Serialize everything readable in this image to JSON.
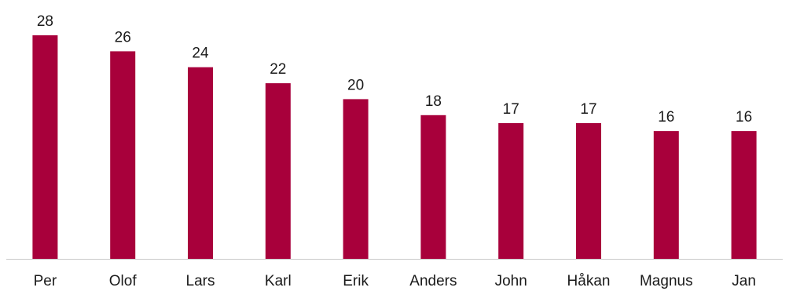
{
  "chart_data": {
    "type": "bar",
    "title": "",
    "xlabel": "",
    "ylabel": "",
    "categories": [
      "Per",
      "Olof",
      "Lars",
      "Karl",
      "Erik",
      "Anders",
      "John",
      "Håkan",
      "Magnus",
      "Jan"
    ],
    "values": [
      28,
      26,
      24,
      22,
      20,
      18,
      17,
      17,
      16,
      16
    ],
    "ylim": [
      0,
      28
    ],
    "grid": false,
    "legend": "none",
    "data_labels": true,
    "bar_color": "#a8003b",
    "axis_color": "#c8c8c8"
  }
}
